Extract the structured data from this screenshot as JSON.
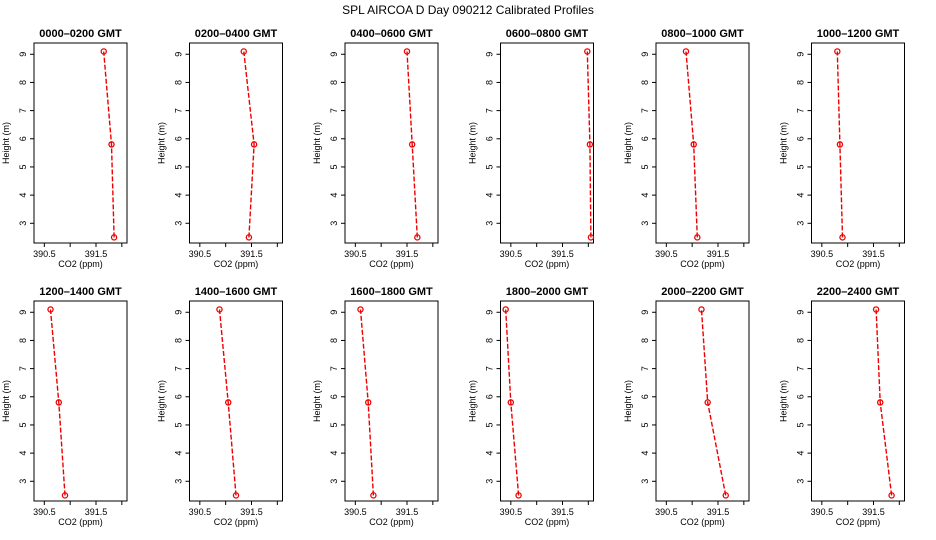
{
  "title": "SPL AIRCOA D  Day 090212  Calibrated Profiles",
  "xlabel": "CO2 (ppm)",
  "ylabel": "Height (m)",
  "colors": {
    "series": "#ee0000",
    "axis": "#000000"
  },
  "chart_data": [
    {
      "type": "line",
      "title": "0000–0200 GMT",
      "xlim": [
        390.3,
        392.1
      ],
      "ylim": [
        2.3,
        9.4
      ],
      "xticks": [
        390.5,
        391.5
      ],
      "xticks_unlabeled": [
        391.0,
        392.0
      ],
      "yticks": [
        3,
        4,
        5,
        6,
        7,
        8,
        9
      ],
      "x": [
        391.85,
        391.8,
        391.65
      ],
      "y": [
        2.5,
        5.8,
        9.1
      ]
    },
    {
      "type": "line",
      "title": "0200–0400 GMT",
      "xlim": [
        390.3,
        392.1
      ],
      "ylim": [
        2.3,
        9.4
      ],
      "xticks": [
        390.5,
        391.5
      ],
      "xticks_unlabeled": [
        391.0,
        392.0
      ],
      "yticks": [
        3,
        4,
        5,
        6,
        7,
        8,
        9
      ],
      "x": [
        391.45,
        391.55,
        391.35
      ],
      "y": [
        2.5,
        5.8,
        9.1
      ]
    },
    {
      "type": "line",
      "title": "0400–0600 GMT",
      "xlim": [
        390.3,
        392.1
      ],
      "ylim": [
        2.3,
        9.4
      ],
      "xticks": [
        390.5,
        391.5
      ],
      "xticks_unlabeled": [
        391.0,
        392.0
      ],
      "yticks": [
        3,
        4,
        5,
        6,
        7,
        8,
        9
      ],
      "x": [
        391.7,
        391.6,
        391.5
      ],
      "y": [
        2.5,
        5.8,
        9.1
      ]
    },
    {
      "type": "line",
      "title": "0600–0800 GMT",
      "xlim": [
        390.3,
        392.1
      ],
      "ylim": [
        2.3,
        9.4
      ],
      "xticks": [
        390.5,
        391.5
      ],
      "xticks_unlabeled": [
        391.0,
        392.0
      ],
      "yticks": [
        3,
        4,
        5,
        6,
        7,
        8,
        9
      ],
      "x": [
        392.05,
        392.03,
        391.98
      ],
      "y": [
        2.5,
        5.8,
        9.1
      ]
    },
    {
      "type": "line",
      "title": "0800–1000 GMT",
      "xlim": [
        390.3,
        392.1
      ],
      "ylim": [
        2.3,
        9.4
      ],
      "xticks": [
        390.5,
        391.5
      ],
      "xticks_unlabeled": [
        391.0,
        392.0
      ],
      "yticks": [
        3,
        4,
        5,
        6,
        7,
        8,
        9
      ],
      "x": [
        391.1,
        391.03,
        390.88
      ],
      "y": [
        2.5,
        5.8,
        9.1
      ]
    },
    {
      "type": "line",
      "title": "1000–1200 GMT",
      "xlim": [
        390.3,
        392.1
      ],
      "ylim": [
        2.3,
        9.4
      ],
      "xticks": [
        390.5,
        391.5
      ],
      "xticks_unlabeled": [
        391.0,
        392.0
      ],
      "yticks": [
        3,
        4,
        5,
        6,
        7,
        8,
        9
      ],
      "x": [
        390.9,
        390.85,
        390.8
      ],
      "y": [
        2.5,
        5.8,
        9.1
      ]
    },
    {
      "type": "line",
      "title": "1200–1400 GMT",
      "xlim": [
        390.3,
        392.1
      ],
      "ylim": [
        2.3,
        9.4
      ],
      "xticks": [
        390.5,
        391.5
      ],
      "xticks_unlabeled": [
        391.0,
        392.0
      ],
      "yticks": [
        3,
        4,
        5,
        6,
        7,
        8,
        9
      ],
      "x": [
        390.9,
        390.78,
        390.62
      ],
      "y": [
        2.5,
        5.8,
        9.1
      ]
    },
    {
      "type": "line",
      "title": "1400–1600 GMT",
      "xlim": [
        390.3,
        392.1
      ],
      "ylim": [
        2.3,
        9.4
      ],
      "xticks": [
        390.5,
        391.5
      ],
      "xticks_unlabeled": [
        391.0,
        392.0
      ],
      "yticks": [
        3,
        4,
        5,
        6,
        7,
        8,
        9
      ],
      "x": [
        391.2,
        391.05,
        390.88
      ],
      "y": [
        2.5,
        5.8,
        9.1
      ]
    },
    {
      "type": "line",
      "title": "1600–1800 GMT",
      "xlim": [
        390.3,
        392.1
      ],
      "ylim": [
        2.3,
        9.4
      ],
      "xticks": [
        390.5,
        391.5
      ],
      "xticks_unlabeled": [
        391.0,
        392.0
      ],
      "yticks": [
        3,
        4,
        5,
        6,
        7,
        8,
        9
      ],
      "x": [
        390.85,
        390.75,
        390.6
      ],
      "y": [
        2.5,
        5.8,
        9.1
      ]
    },
    {
      "type": "line",
      "title": "1800–2000 GMT",
      "xlim": [
        390.3,
        392.1
      ],
      "ylim": [
        2.3,
        9.4
      ],
      "xticks": [
        390.5,
        391.5
      ],
      "xticks_unlabeled": [
        391.0,
        392.0
      ],
      "yticks": [
        3,
        4,
        5,
        6,
        7,
        8,
        9
      ],
      "x": [
        390.65,
        390.5,
        390.4
      ],
      "y": [
        2.5,
        5.8,
        9.1
      ]
    },
    {
      "type": "line",
      "title": "2000–2200 GMT",
      "xlim": [
        390.3,
        392.1
      ],
      "ylim": [
        2.3,
        9.4
      ],
      "xticks": [
        390.5,
        391.5
      ],
      "xticks_unlabeled": [
        391.0,
        392.0
      ],
      "yticks": [
        3,
        4,
        5,
        6,
        7,
        8,
        9
      ],
      "x": [
        391.65,
        391.3,
        391.18
      ],
      "y": [
        2.5,
        5.8,
        9.1
      ]
    },
    {
      "type": "line",
      "title": "2200–2400 GMT",
      "xlim": [
        390.3,
        392.1
      ],
      "ylim": [
        2.3,
        9.4
      ],
      "xticks": [
        390.5,
        391.5
      ],
      "xticks_unlabeled": [
        391.0,
        392.0
      ],
      "yticks": [
        3,
        4,
        5,
        6,
        7,
        8,
        9
      ],
      "x": [
        391.85,
        391.63,
        391.55
      ],
      "y": [
        2.5,
        5.8,
        9.1
      ]
    }
  ]
}
